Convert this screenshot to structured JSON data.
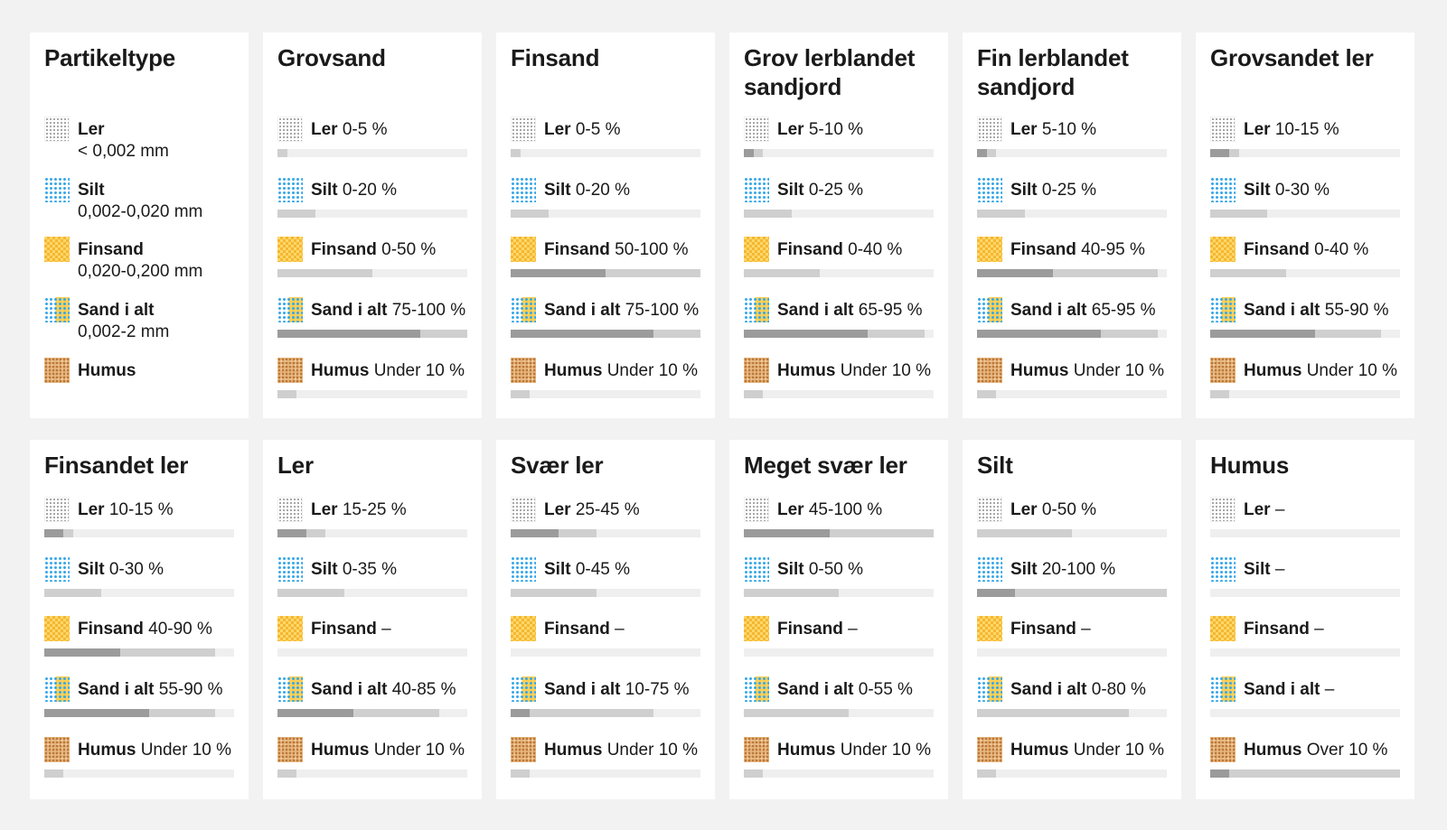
{
  "legend": {
    "title": "Partikeltype",
    "items": [
      {
        "key": "ler",
        "name": "Ler",
        "size": "< 0,002 mm"
      },
      {
        "key": "silt",
        "name": "Silt",
        "size": "0,002-0,020 mm"
      },
      {
        "key": "finsand",
        "name": "Finsand",
        "size": "0,020-0,200 mm"
      },
      {
        "key": "sand",
        "name": "Sand i alt",
        "size": "0,002-2 mm"
      },
      {
        "key": "humus",
        "name": "Humus",
        "size": ""
      }
    ]
  },
  "pattern_colors": {
    "ler": "#9a9a9a",
    "silt": "#38a8e8",
    "finsand": "#f5b731",
    "sand": "#ffcf55",
    "humus": "#b9783a",
    "bar_track": "#efefef",
    "bar_range": "#cfcfcf",
    "bar_typical": "#9b9b9b"
  },
  "soils": [
    {
      "title": "Grovsand",
      "rows": [
        {
          "key": "ler",
          "name": "Ler",
          "value": "0-5 %",
          "range": [
            0,
            5
          ],
          "typ": null
        },
        {
          "key": "silt",
          "name": "Silt",
          "value": "0-20 %",
          "range": [
            0,
            20
          ],
          "typ": null
        },
        {
          "key": "finsand",
          "name": "Finsand",
          "value": "0-50 %",
          "range": [
            0,
            50
          ],
          "typ": null
        },
        {
          "key": "sand",
          "name": "Sand i alt",
          "value": "75-100 %",
          "range": [
            0,
            100
          ],
          "typ": [
            0,
            75
          ]
        },
        {
          "key": "humus",
          "name": "Humus",
          "value": "Under 10 %",
          "range": [
            0,
            10
          ],
          "typ": null
        }
      ]
    },
    {
      "title": "Finsand",
      "rows": [
        {
          "key": "ler",
          "name": "Ler",
          "value": "0-5 %",
          "range": [
            0,
            5
          ],
          "typ": null
        },
        {
          "key": "silt",
          "name": "Silt",
          "value": "0-20 %",
          "range": [
            0,
            20
          ],
          "typ": null
        },
        {
          "key": "finsand",
          "name": "Finsand",
          "value": "50-100 %",
          "range": [
            0,
            100
          ],
          "typ": [
            0,
            50
          ]
        },
        {
          "key": "sand",
          "name": "Sand i alt",
          "value": "75-100 %",
          "range": [
            0,
            100
          ],
          "typ": [
            0,
            75
          ]
        },
        {
          "key": "humus",
          "name": "Humus",
          "value": "Under 10 %",
          "range": [
            0,
            10
          ],
          "typ": null
        }
      ]
    },
    {
      "title": "Grov lerblandet sandjord",
      "rows": [
        {
          "key": "ler",
          "name": "Ler",
          "value": "5-10 %",
          "range": [
            0,
            10
          ],
          "typ": [
            0,
            5
          ]
        },
        {
          "key": "silt",
          "name": "Silt",
          "value": "0-25 %",
          "range": [
            0,
            25
          ],
          "typ": null
        },
        {
          "key": "finsand",
          "name": "Finsand",
          "value": "0-40 %",
          "range": [
            0,
            40
          ],
          "typ": null
        },
        {
          "key": "sand",
          "name": "Sand i alt",
          "value": "65-95 %",
          "range": [
            0,
            95
          ],
          "typ": [
            0,
            65
          ]
        },
        {
          "key": "humus",
          "name": "Humus",
          "value": "Under 10 %",
          "range": [
            0,
            10
          ],
          "typ": null
        }
      ]
    },
    {
      "title": "Fin lerblandet sandjord",
      "rows": [
        {
          "key": "ler",
          "name": "Ler",
          "value": "5-10 %",
          "range": [
            0,
            10
          ],
          "typ": [
            0,
            5
          ]
        },
        {
          "key": "silt",
          "name": "Silt",
          "value": "0-25 %",
          "range": [
            0,
            25
          ],
          "typ": null
        },
        {
          "key": "finsand",
          "name": "Finsand",
          "value": "40-95 %",
          "range": [
            0,
            95
          ],
          "typ": [
            0,
            40
          ]
        },
        {
          "key": "sand",
          "name": "Sand i alt",
          "value": "65-95 %",
          "range": [
            0,
            95
          ],
          "typ": [
            0,
            65
          ]
        },
        {
          "key": "humus",
          "name": "Humus",
          "value": "Under 10 %",
          "range": [
            0,
            10
          ],
          "typ": null
        }
      ]
    },
    {
      "title": "Grovsandet ler",
      "rows": [
        {
          "key": "ler",
          "name": "Ler",
          "value": "10-15 %",
          "range": [
            0,
            15
          ],
          "typ": [
            0,
            10
          ]
        },
        {
          "key": "silt",
          "name": "Silt",
          "value": "0-30 %",
          "range": [
            0,
            30
          ],
          "typ": null
        },
        {
          "key": "finsand",
          "name": "Finsand",
          "value": "0-40 %",
          "range": [
            0,
            40
          ],
          "typ": null
        },
        {
          "key": "sand",
          "name": "Sand i alt",
          "value": "55-90 %",
          "range": [
            0,
            90
          ],
          "typ": [
            0,
            55
          ]
        },
        {
          "key": "humus",
          "name": "Humus",
          "value": "Under 10 %",
          "range": [
            0,
            10
          ],
          "typ": null
        }
      ]
    },
    {
      "title": "Finsandet ler",
      "rows": [
        {
          "key": "ler",
          "name": "Ler",
          "value": "10-15 %",
          "range": [
            0,
            15
          ],
          "typ": [
            0,
            10
          ]
        },
        {
          "key": "silt",
          "name": "Silt",
          "value": "0-30 %",
          "range": [
            0,
            30
          ],
          "typ": null
        },
        {
          "key": "finsand",
          "name": "Finsand",
          "value": "40-90 %",
          "range": [
            0,
            90
          ],
          "typ": [
            0,
            40
          ]
        },
        {
          "key": "sand",
          "name": "Sand i alt",
          "value": "55-90 %",
          "range": [
            0,
            90
          ],
          "typ": [
            0,
            55
          ]
        },
        {
          "key": "humus",
          "name": "Humus",
          "value": "Under 10 %",
          "range": [
            0,
            10
          ],
          "typ": null
        }
      ]
    },
    {
      "title": "Ler",
      "rows": [
        {
          "key": "ler",
          "name": "Ler",
          "value": "15-25 %",
          "range": [
            0,
            25
          ],
          "typ": [
            0,
            15
          ]
        },
        {
          "key": "silt",
          "name": "Silt",
          "value": "0-35 %",
          "range": [
            0,
            35
          ],
          "typ": null
        },
        {
          "key": "finsand",
          "name": "Finsand",
          "value": "–",
          "range": null,
          "typ": null
        },
        {
          "key": "sand",
          "name": "Sand i alt",
          "value": "40-85 %",
          "range": [
            0,
            85
          ],
          "typ": [
            0,
            40
          ]
        },
        {
          "key": "humus",
          "name": "Humus",
          "value": "Under 10 %",
          "range": [
            0,
            10
          ],
          "typ": null
        }
      ]
    },
    {
      "title": "Svær ler",
      "rows": [
        {
          "key": "ler",
          "name": "Ler",
          "value": "25-45 %",
          "range": [
            0,
            45
          ],
          "typ": [
            0,
            25
          ]
        },
        {
          "key": "silt",
          "name": "Silt",
          "value": "0-45 %",
          "range": [
            0,
            45
          ],
          "typ": null
        },
        {
          "key": "finsand",
          "name": "Finsand",
          "value": "–",
          "range": null,
          "typ": null
        },
        {
          "key": "sand",
          "name": "Sand i alt",
          "value": "10-75 %",
          "range": [
            0,
            75
          ],
          "typ": [
            0,
            10
          ]
        },
        {
          "key": "humus",
          "name": "Humus",
          "value": "Under 10 %",
          "range": [
            0,
            10
          ],
          "typ": null
        }
      ]
    },
    {
      "title": "Meget svær ler",
      "rows": [
        {
          "key": "ler",
          "name": "Ler",
          "value": "45-100 %",
          "range": [
            0,
            100
          ],
          "typ": [
            0,
            45
          ]
        },
        {
          "key": "silt",
          "name": "Silt",
          "value": "0-50 %",
          "range": [
            0,
            50
          ],
          "typ": null
        },
        {
          "key": "finsand",
          "name": "Finsand",
          "value": "–",
          "range": null,
          "typ": null
        },
        {
          "key": "sand",
          "name": "Sand i alt",
          "value": "0-55 %",
          "range": [
            0,
            55
          ],
          "typ": null
        },
        {
          "key": "humus",
          "name": "Humus",
          "value": "Under 10 %",
          "range": [
            0,
            10
          ],
          "typ": null
        }
      ]
    },
    {
      "title": "Silt",
      "rows": [
        {
          "key": "ler",
          "name": "Ler",
          "value": "0-50 %",
          "range": [
            0,
            50
          ],
          "typ": null
        },
        {
          "key": "silt",
          "name": "Silt",
          "value": "20-100 %",
          "range": [
            0,
            100
          ],
          "typ": [
            0,
            20
          ]
        },
        {
          "key": "finsand",
          "name": "Finsand",
          "value": "–",
          "range": null,
          "typ": null
        },
        {
          "key": "sand",
          "name": "Sand i alt",
          "value": "0-80 %",
          "range": [
            0,
            80
          ],
          "typ": null
        },
        {
          "key": "humus",
          "name": "Humus",
          "value": "Under 10 %",
          "range": [
            0,
            10
          ],
          "typ": null
        }
      ]
    },
    {
      "title": "Humus",
      "rows": [
        {
          "key": "ler",
          "name": "Ler",
          "value": "–",
          "range": null,
          "typ": null
        },
        {
          "key": "silt",
          "name": "Silt",
          "value": "–",
          "range": null,
          "typ": null
        },
        {
          "key": "finsand",
          "name": "Finsand",
          "value": "–",
          "range": null,
          "typ": null
        },
        {
          "key": "sand",
          "name": "Sand i alt",
          "value": "–",
          "range": null,
          "typ": null
        },
        {
          "key": "humus",
          "name": "Humus",
          "value": "Over 10 %",
          "range": [
            0,
            100
          ],
          "typ": [
            0,
            10
          ]
        }
      ]
    }
  ]
}
